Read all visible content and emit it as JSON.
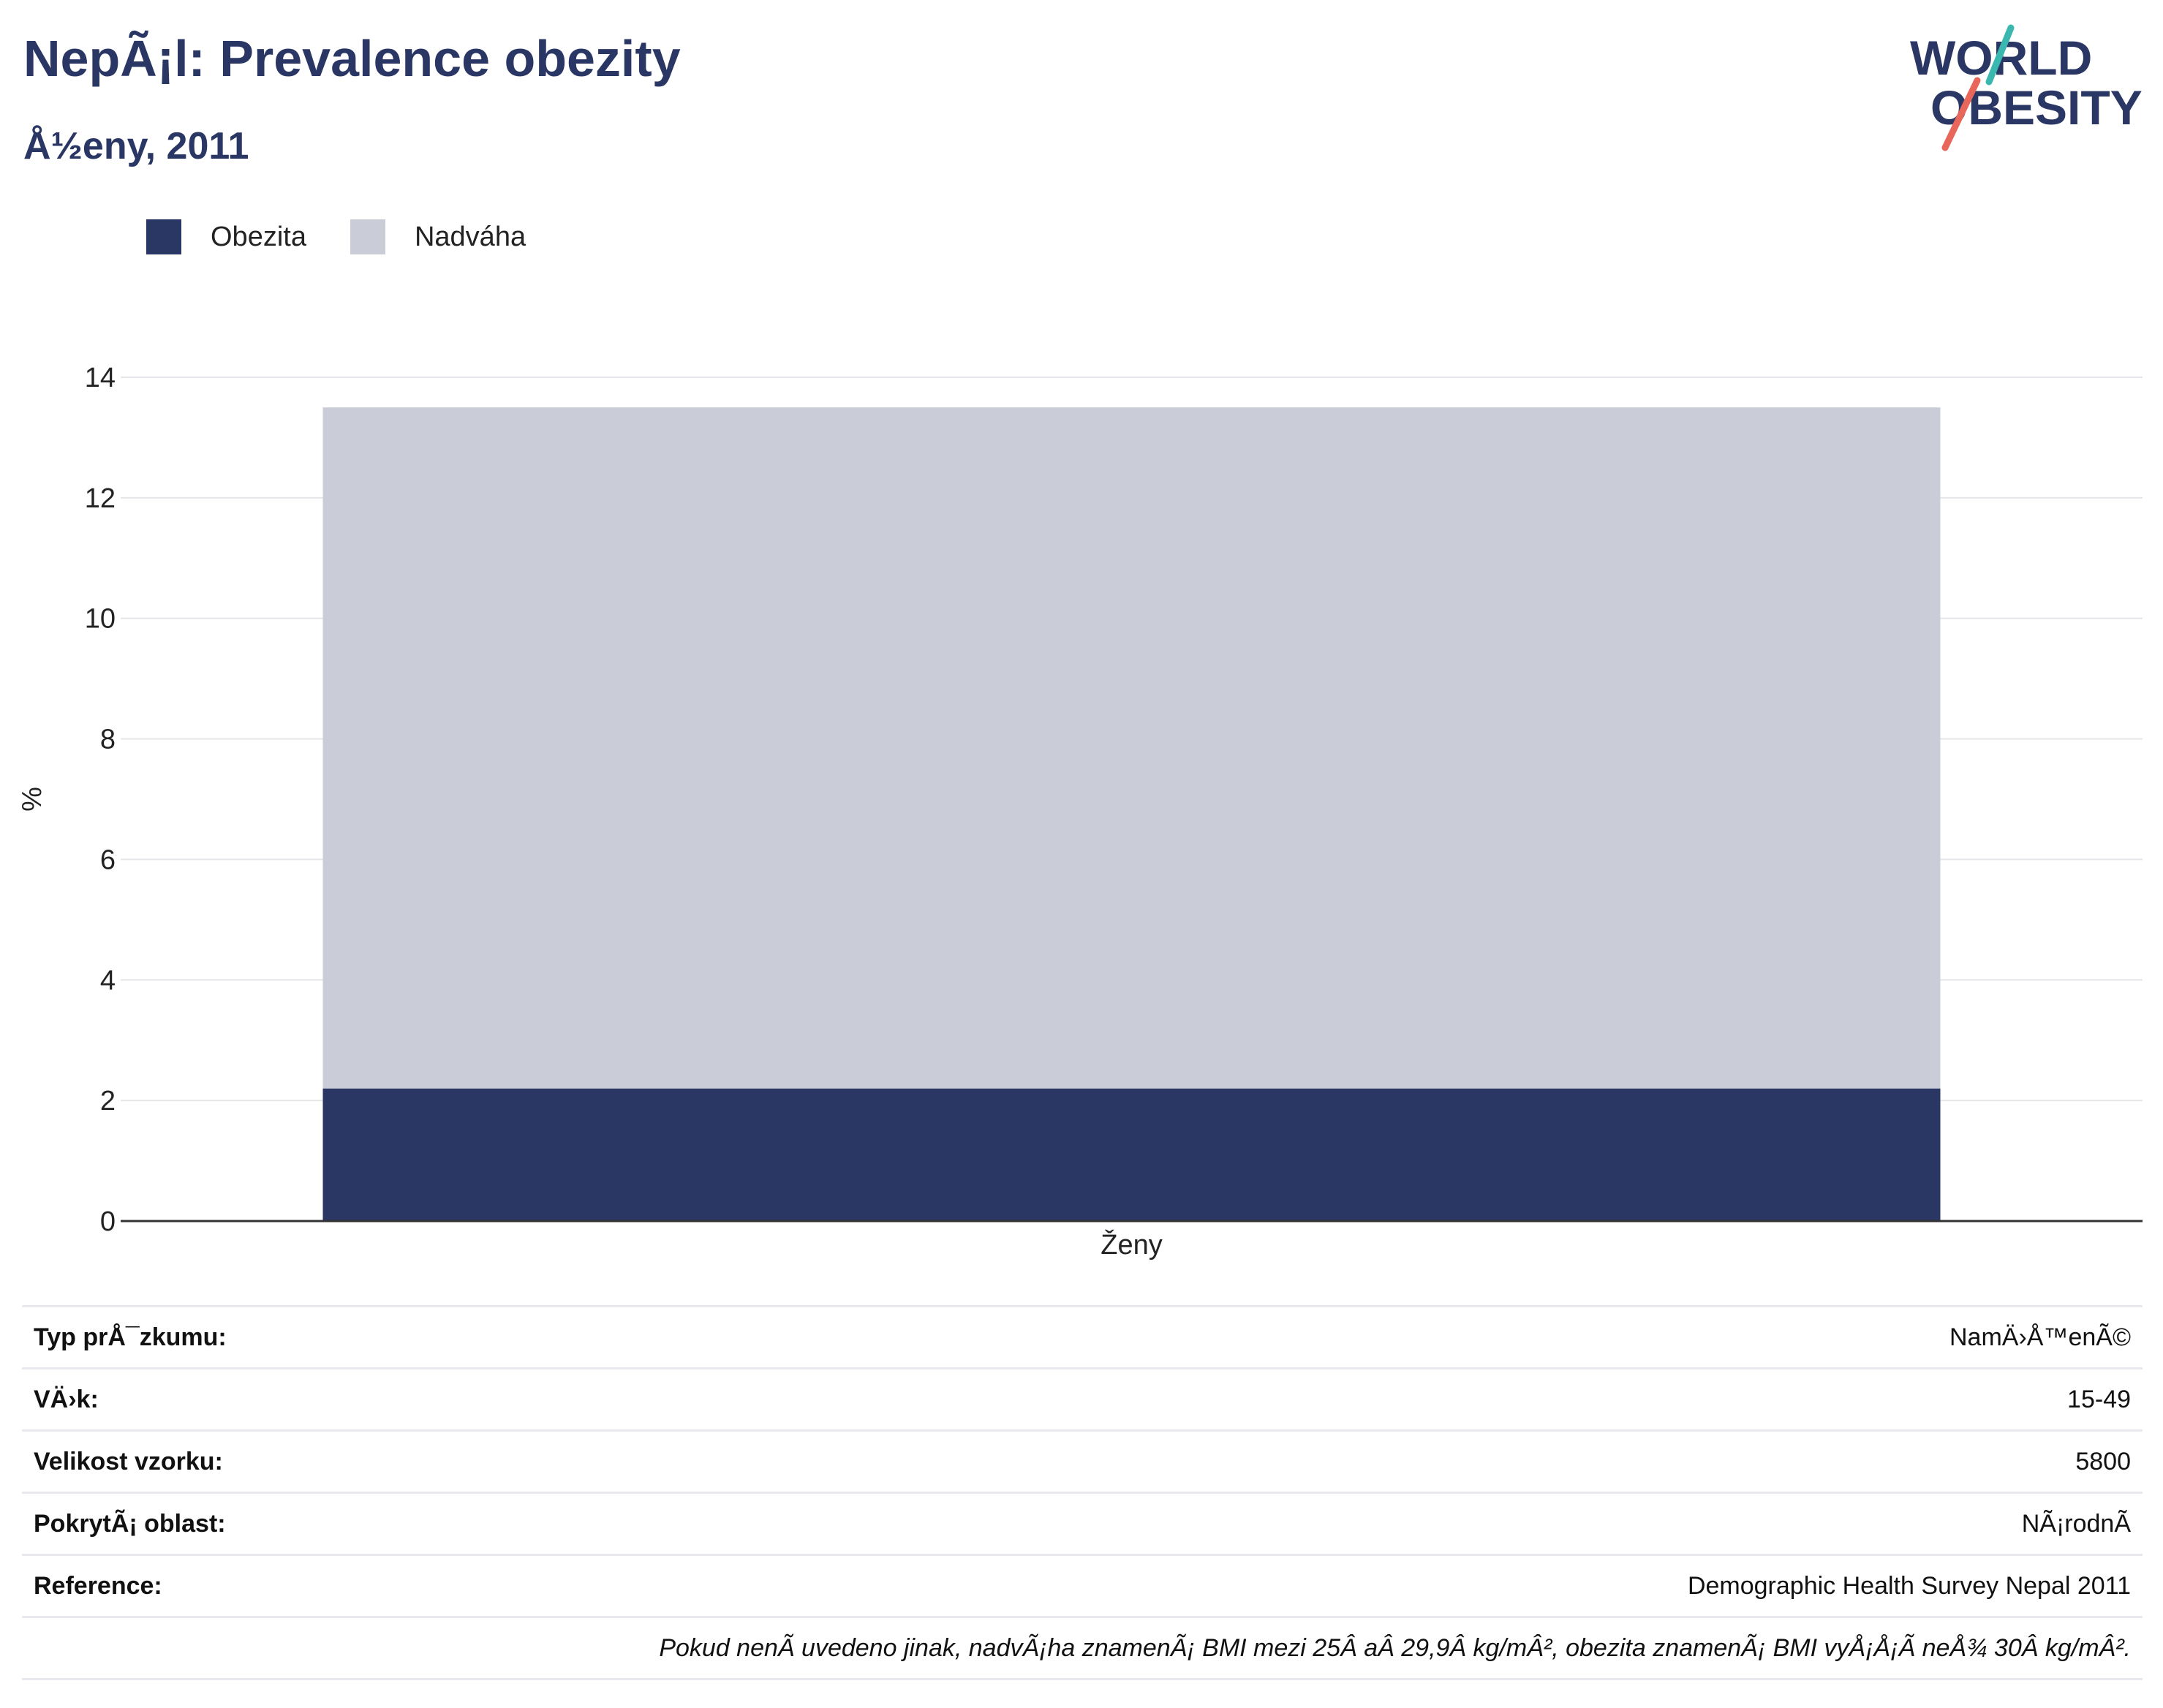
{
  "header": {
    "title": "NepÃ¡l: Prevalence obezity",
    "subtitle": "Å½eny, 2011"
  },
  "logo": {
    "line1": "WORLD",
    "line2": "OBESITY"
  },
  "legend": [
    {
      "label": "Obezita",
      "color": "#2a3664"
    },
    {
      "label": "Nadváha",
      "color": "#cacdd8"
    }
  ],
  "chart_data": {
    "type": "bar",
    "stacked": true,
    "categories": [
      "Ženy"
    ],
    "series": [
      {
        "name": "Obezita",
        "values": [
          2.2
        ],
        "color": "#2a3664"
      },
      {
        "name": "Nadváha",
        "values": [
          11.3
        ],
        "color": "#cacdd8"
      }
    ],
    "ylabel": "%",
    "ylim": [
      0,
      14
    ],
    "yticks": [
      0,
      2,
      4,
      6,
      8,
      10,
      12,
      14
    ],
    "grid": true,
    "legend_position": "top-left"
  },
  "info": [
    {
      "key": "Typ prÅ¯zkumu:",
      "value": "NamÄ›Å™enÃ©"
    },
    {
      "key": "VÄ›k:",
      "value": "15-49"
    },
    {
      "key": "Velikost vzorku:",
      "value": "5800"
    },
    {
      "key": "PokrytÃ¡ oblast:",
      "value": "NÃ¡rodnÃ"
    },
    {
      "key": "Reference:",
      "value": "Demographic Health Survey Nepal 2011"
    }
  ],
  "note": "Pokud nenÃ uvedeno jinak, nadvÃ¡ha znamenÃ¡ BMI mezi 25Â aÂ 29,9Â kg/mÂ², obezita znamenÃ¡ BMI vyÅ¡Å¡Ã neÅ¾ 30Â kg/mÂ²."
}
